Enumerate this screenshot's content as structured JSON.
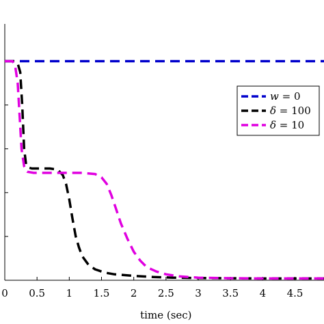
{
  "chart_data": {
    "type": "line",
    "title": "",
    "xlabel": "time (sec)",
    "ylabel": "",
    "xlim": [
      0,
      4.95
    ],
    "ylim": [
      0,
      1.17
    ],
    "grid": false,
    "legend_position": "right",
    "x_tick_labels": [
      "0",
      "0.5",
      "1",
      "1.5",
      "2",
      "2.5",
      "3",
      "3.5",
      "4",
      "4.5"
    ],
    "x_ticks": [
      0,
      0.5,
      1,
      1.5,
      2,
      2.5,
      3,
      3.5,
      4,
      4.5
    ],
    "y_ticks": [
      0,
      0.2,
      0.4,
      0.6,
      0.8,
      1.0
    ],
    "series": [
      {
        "name": "w = 0",
        "legend_var": "w",
        "legend_rest": " = 0",
        "color": "#0000cc",
        "style": "dashed",
        "x": [
          0,
          4.95
        ],
        "y": [
          1.0,
          1.0
        ]
      },
      {
        "name": "δ = 100",
        "legend_var": "δ",
        "legend_rest": " = 100",
        "color": "#000000",
        "style": "dashed",
        "x": [
          0,
          0.15,
          0.2,
          0.24,
          0.27,
          0.3,
          0.33,
          0.36,
          0.42,
          0.55,
          0.7,
          0.82,
          0.9,
          0.95,
          1.0,
          1.05,
          1.1,
          1.15,
          1.2,
          1.3,
          1.4,
          1.55,
          1.7,
          2.0,
          2.3,
          2.6,
          3.0,
          3.5,
          4.0,
          4.5,
          4.95
        ],
        "y": [
          1.0,
          1.0,
          0.99,
          0.95,
          0.8,
          0.6,
          0.53,
          0.515,
          0.51,
          0.51,
          0.51,
          0.505,
          0.48,
          0.44,
          0.37,
          0.28,
          0.2,
          0.15,
          0.11,
          0.07,
          0.05,
          0.035,
          0.027,
          0.02,
          0.015,
          0.012,
          0.01,
          0.009,
          0.008,
          0.008,
          0.008
        ]
      },
      {
        "name": "δ = 10",
        "legend_var": "δ",
        "legend_rest": " = 10",
        "color": "#e000e0",
        "style": "dashed",
        "x": [
          0,
          0.12,
          0.16,
          0.2,
          0.23,
          0.26,
          0.3,
          0.35,
          0.45,
          0.6,
          0.8,
          1.0,
          1.2,
          1.4,
          1.5,
          1.58,
          1.65,
          1.72,
          1.8,
          1.9,
          2.0,
          2.1,
          2.2,
          2.35,
          2.5,
          2.7,
          3.0,
          3.5,
          4.0,
          4.5,
          4.95
        ],
        "y": [
          1.0,
          1.0,
          0.98,
          0.9,
          0.75,
          0.6,
          0.52,
          0.495,
          0.49,
          0.49,
          0.49,
          0.49,
          0.49,
          0.485,
          0.47,
          0.44,
          0.39,
          0.33,
          0.26,
          0.19,
          0.13,
          0.09,
          0.06,
          0.04,
          0.027,
          0.018,
          0.012,
          0.009,
          0.008,
          0.008,
          0.008
        ]
      }
    ]
  }
}
